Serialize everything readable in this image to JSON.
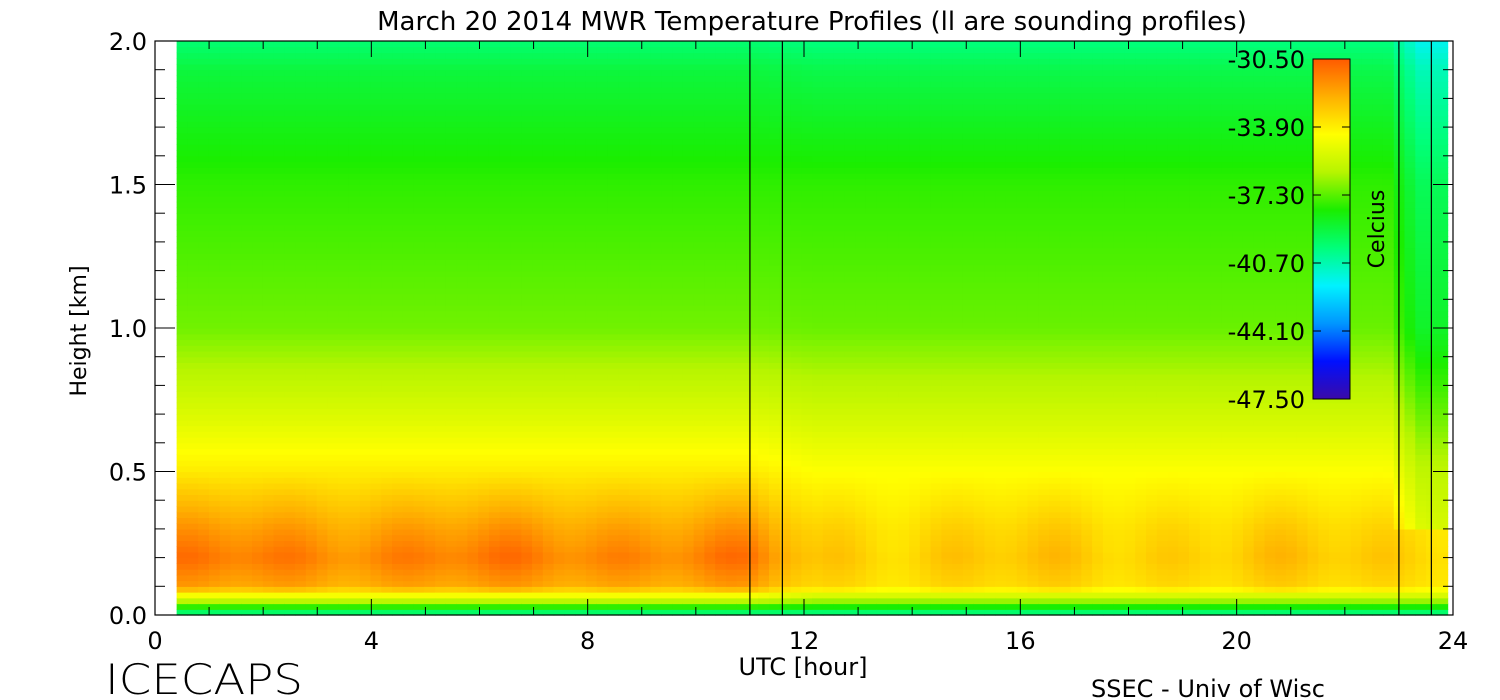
{
  "chart_data": {
    "type": "heatmap",
    "title": "March 20 2014 MWR Temperature Profiles (ll are sounding profiles)",
    "xlabel": "UTC [hour]",
    "ylabel": "Height [km]",
    "xlim": [
      0,
      24
    ],
    "ylim": [
      0.0,
      2.0
    ],
    "x_ticks": [
      "0",
      "4",
      "8",
      "12",
      "16",
      "20",
      "24"
    ],
    "y_ticks": [
      "0.0",
      "0.5",
      "1.0",
      "1.5",
      "2.0"
    ],
    "data_x_range": [
      0.4,
      23.9
    ],
    "sounding_profiles_utc": [
      11.0,
      11.6,
      23.0,
      23.6
    ],
    "colorbar": {
      "label": "Celcius",
      "range": [
        -47.5,
        -30.5
      ],
      "tick_labels": [
        "-30.50",
        "-33.90",
        "-37.30",
        "-40.70",
        "-44.10",
        "-47.50"
      ],
      "colormap": [
        "#3a0aa8",
        "#0010ff",
        "#0096ff",
        "#00f2ff",
        "#00ff7a",
        "#1aee00",
        "#b6f500",
        "#ffff00",
        "#ffb000",
        "#ff5a00"
      ]
    },
    "approx_temperature_by_height": {
      "height_km": [
        0.0,
        0.05,
        0.1,
        0.2,
        0.3,
        0.5,
        0.7,
        1.0,
        1.5,
        1.9,
        2.0
      ],
      "temp_c_before_11utc": [
        -40.5,
        -36.0,
        -32.2,
        -31.3,
        -32.0,
        -33.8,
        -35.2,
        -37.0,
        -37.8,
        -39.0,
        -39.8
      ],
      "temp_c_after_12utc": [
        -40.5,
        -36.5,
        -33.4,
        -33.0,
        -33.3,
        -34.3,
        -35.5,
        -37.1,
        -37.8,
        -39.2,
        -40.0
      ]
    }
  },
  "footer": {
    "left": "ICECAPS",
    "right": "SSEC - Univ of Wisc"
  }
}
